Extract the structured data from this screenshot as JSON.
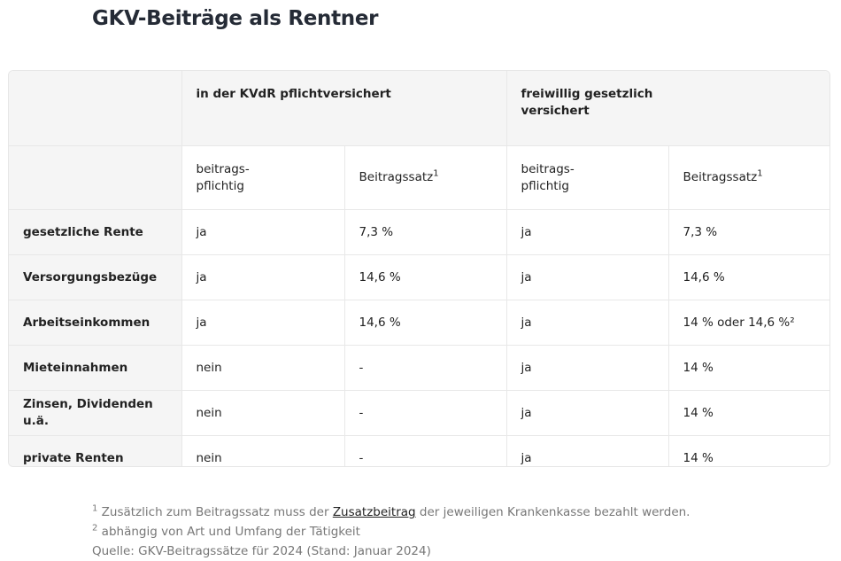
{
  "title": "GKV-Beiträge als Rentner",
  "table": {
    "group_headers": [
      "in der KVdR pflichtversichert",
      "freiwillig gesetzlich\nversichert"
    ],
    "sub_headers": [
      {
        "text": "beitrags-\npflichtig"
      },
      {
        "text": "Beitragssatz",
        "sup": "1"
      },
      {
        "text": "beitrags-\npflichtig"
      },
      {
        "text": "Beitragssatz",
        "sup": "1"
      }
    ],
    "rows": [
      [
        "gesetzliche Rente",
        "ja",
        "7,3 %",
        "ja",
        "7,3 %"
      ],
      [
        "Versorgungsbezüge",
        "ja",
        "14,6 %",
        "ja",
        "14,6 %"
      ],
      [
        "Arbeitseinkommen",
        "ja",
        "14,6 %",
        "ja",
        "14 % oder 14,6 %²"
      ],
      [
        "Mieteinnahmen",
        "nein",
        "-",
        "ja",
        "14 %"
      ],
      [
        "Zinsen, Dividenden u.ä.",
        "nein",
        "-",
        "ja",
        "14 %"
      ],
      [
        "private Renten",
        "nein",
        "-",
        "ja",
        "14 %"
      ]
    ]
  },
  "footnotes": [
    {
      "marker": "1",
      "before": "Zusätzlich zum Beitragssatz muss der ",
      "link": "Zusatzbeitrag",
      "after": " der jeweiligen Krankenkasse bezahlt werden."
    },
    {
      "marker": "2",
      "text": "abhängig von Art und Umfang der Tätigkeit"
    }
  ],
  "source": "Quelle: GKV-Beitragssätze für 2024 (Stand: Januar 2024)"
}
